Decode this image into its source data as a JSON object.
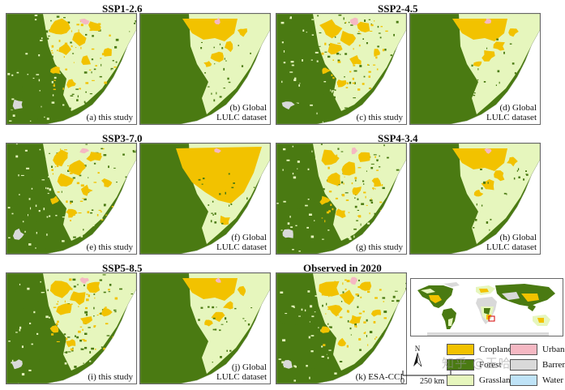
{
  "titles": {
    "ssp126": "SSP1-2.6",
    "ssp245": "SSP2-4.5",
    "ssp370": "SSP3-7.0",
    "ssp434": "SSP4-3.4",
    "ssp585": "SSP5-8.5",
    "observed": "Observed in 2020"
  },
  "panels": {
    "a": "(a) this study",
    "b1": "(b) Global",
    "b2": "LULC dataset",
    "c": "(c) this study",
    "d1": "(d) Global",
    "d2": "LULC dataset",
    "e": "(e) this study",
    "f1": "(f) Global",
    "f2": "LULC dataset",
    "g": "(g) this study",
    "h1": "(h) Global",
    "h2": "LULC dataset",
    "i": "(i) this study",
    "j1": "(j) Global",
    "j2": "LULC dataset",
    "k": "(k) ESA-CCI"
  },
  "legend": {
    "cropland": "Cropland",
    "urban": "Urban",
    "forest": "Forest",
    "barren": "Barren",
    "grassland": "Grassland",
    "water": "Water"
  },
  "colors": {
    "forest": "#4a7a12",
    "cropland": "#f2c200",
    "grassland": "#e6f6bd",
    "urban": "#f5b8c3",
    "barren": "#d9d9d9",
    "water": "#bfe3f7",
    "ocean": "#ffffff"
  },
  "north": {
    "label": "N"
  },
  "scale": {
    "zero": "0",
    "distance": "250 km"
  },
  "watermark": "知乎 @王哈"
}
